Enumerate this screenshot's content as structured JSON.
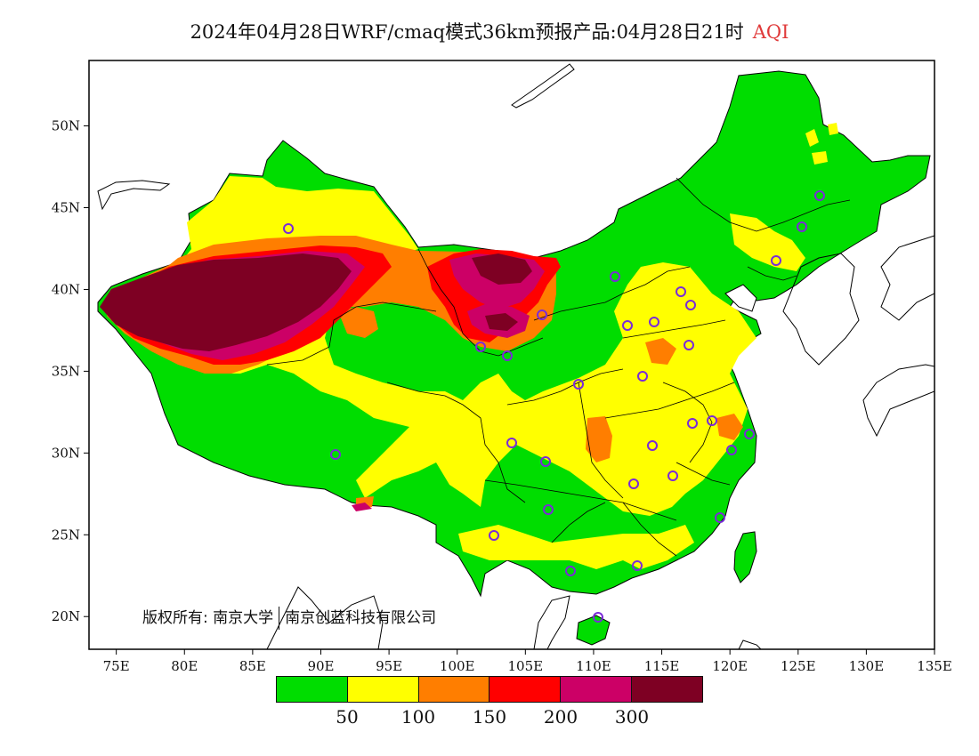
{
  "title": {
    "main": "2024年04月28日WRF/cmaq模式36km预报产品:04月28日21时",
    "variable": "AQI"
  },
  "axes": {
    "x_ticks": [
      "75E",
      "80E",
      "85E",
      "90E",
      "95E",
      "100E",
      "105E",
      "110E",
      "115E",
      "120E",
      "125E",
      "130E",
      "135E"
    ],
    "y_ticks": [
      "50N",
      "45N",
      "40N",
      "35N",
      "30N",
      "25N",
      "20N"
    ],
    "x_range": [
      73,
      135
    ],
    "y_range": [
      18,
      54
    ]
  },
  "copyright": {
    "prefix": "版权所有:",
    "org1": "南京大学",
    "org2": "南京创蓝科技有限公司"
  },
  "legend": {
    "colors": [
      "#00dd00",
      "#ffff00",
      "#ff7e00",
      "#ff0000",
      "#cc0066",
      "#7e0023"
    ],
    "labels": [
      "50",
      "100",
      "150",
      "200",
      "300"
    ]
  },
  "colors": {
    "good": "#00dd00",
    "moderate": "#ffff00",
    "usg": "#ff7e00",
    "unhealthy": "#ff0000",
    "very_unhealthy": "#cc0066",
    "hazardous": "#7e0023",
    "station_marker": "#7a2bd8"
  }
}
